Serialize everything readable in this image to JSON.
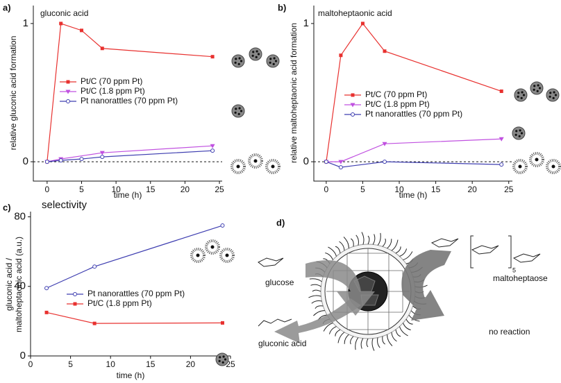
{
  "chart_data": [
    {
      "type": "line",
      "panel": "a)",
      "title": "gluconic acid",
      "xlabel": "time (h)",
      "ylabel": "relative gluconic acid formation",
      "xlim": [
        -2,
        25.4
      ],
      "ylim": [
        -0.14,
        1.13
      ],
      "xticks": [
        0,
        5,
        10,
        15,
        20,
        25
      ],
      "yticks": [
        0,
        1
      ],
      "zero_line": true,
      "series": [
        {
          "name": "Pt/C (70 ppm Pt)",
          "color": "#e8312f",
          "marker": "square",
          "x": [
            0,
            2,
            5,
            8,
            24
          ],
          "values": [
            0,
            1,
            0.95,
            0.82,
            0.76
          ]
        },
        {
          "name": "Pt/C (1.8 ppm Pt)",
          "color": "#c050e0",
          "marker": "triangle-down",
          "x": [
            0,
            2,
            8,
            24
          ],
          "values": [
            0,
            0.02,
            0.065,
            0.115
          ]
        },
        {
          "name": "Pt nanorattles (70 ppm Pt)",
          "color": "#3d3db0",
          "marker": "circle-open",
          "x": [
            0,
            2,
            5,
            8,
            24
          ],
          "values": [
            0,
            0.01,
            0.02,
            0.035,
            0.08
          ]
        }
      ]
    },
    {
      "type": "line",
      "panel": "b)",
      "title": "maltoheptaonic acid",
      "xlabel": "time (h)",
      "ylabel": "relative maltoheptaonic acid formation",
      "xlim": [
        -1.7,
        25.5
      ],
      "ylim": [
        -0.14,
        1.13
      ],
      "xticks": [
        0,
        5,
        10,
        15,
        20,
        25
      ],
      "yticks": [
        0,
        1
      ],
      "zero_line": true,
      "series": [
        {
          "name": "Pt/C (70 ppm Pt)",
          "color": "#e8312f",
          "marker": "square",
          "x": [
            0,
            2,
            5,
            8,
            24
          ],
          "values": [
            0,
            0.77,
            1,
            0.8,
            0.51
          ]
        },
        {
          "name": "Pt/C (1.8 ppm Pt)",
          "color": "#c050e0",
          "marker": "triangle-down",
          "x": [
            0,
            2,
            8,
            24
          ],
          "values": [
            0,
            0,
            0.13,
            0.165
          ]
        },
        {
          "name": "Pt nanorattles (70 ppm Pt)",
          "color": "#3d3db0",
          "marker": "circle-open",
          "x": [
            0,
            2,
            8,
            24
          ],
          "values": [
            0,
            -0.04,
            0,
            -0.02
          ]
        }
      ]
    },
    {
      "type": "line",
      "panel": "c)",
      "title": "selectivity",
      "xlabel": "time (h)",
      "ylabel": [
        "gluconic acid /",
        "maltoheptaonic acid (a.u.)"
      ],
      "xlim": [
        0,
        25
      ],
      "ylim": [
        0,
        83
      ],
      "xticks": [
        0,
        5,
        10,
        15,
        20,
        25
      ],
      "yticks": [
        0,
        40,
        80
      ],
      "zero_line": false,
      "series": [
        {
          "name": "Pt nanorattles (70 ppm Pt)",
          "color": "#3d3db0",
          "marker": "circle-open",
          "x": [
            2,
            8,
            24
          ],
          "values": [
            39,
            51.4,
            75
          ]
        },
        {
          "name": "Pt/C (1.8 ppm Pt)",
          "color": "#e8312f",
          "marker": "square",
          "x": [
            2,
            8,
            24
          ],
          "values": [
            25,
            18.7,
            19
          ]
        }
      ]
    }
  ],
  "diagram": {
    "panel": "d)",
    "labels": {
      "glucose": "glucose",
      "gluconic": "gluconic acid",
      "malto": "maltoheptaose",
      "none": "no reaction",
      "sub": "5"
    }
  }
}
